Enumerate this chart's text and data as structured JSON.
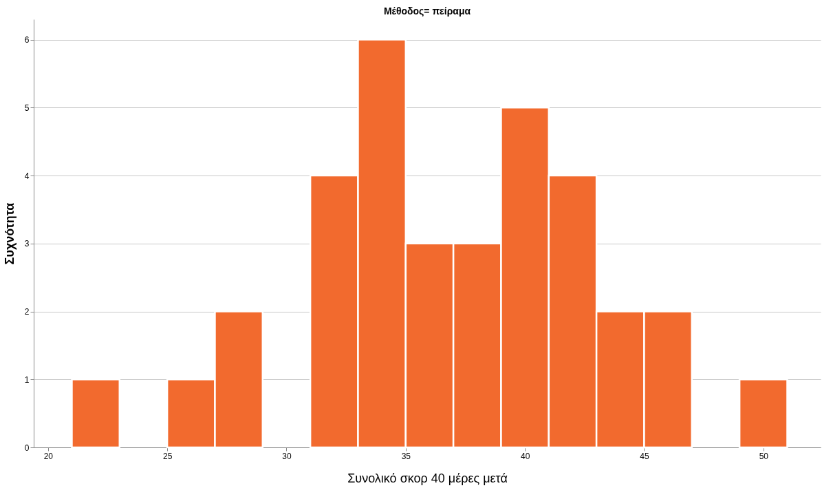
{
  "chart_data": {
    "type": "histogram",
    "title": "Μέθοδος= πείραμα",
    "xlabel": "Συνολικό σκορ 40 μέρες μετά",
    "ylabel": "Συχνότητα",
    "bins": [
      21,
      23,
      25,
      27,
      29,
      31,
      33,
      35,
      37,
      39,
      41,
      43,
      45,
      47,
      49,
      51
    ],
    "values": [
      1,
      0,
      1,
      2,
      0,
      4,
      6,
      3,
      3,
      5,
      4,
      2,
      2,
      0,
      1
    ],
    "color": "#f26a2e",
    "xlim": [
      19.4,
      52.4
    ],
    "xticks": [
      20,
      25,
      30,
      35,
      40,
      45,
      50
    ],
    "ylim": [
      0,
      6.3
    ],
    "yticks": [
      0,
      1,
      2,
      3,
      4,
      5,
      6
    ],
    "grid": "y"
  }
}
